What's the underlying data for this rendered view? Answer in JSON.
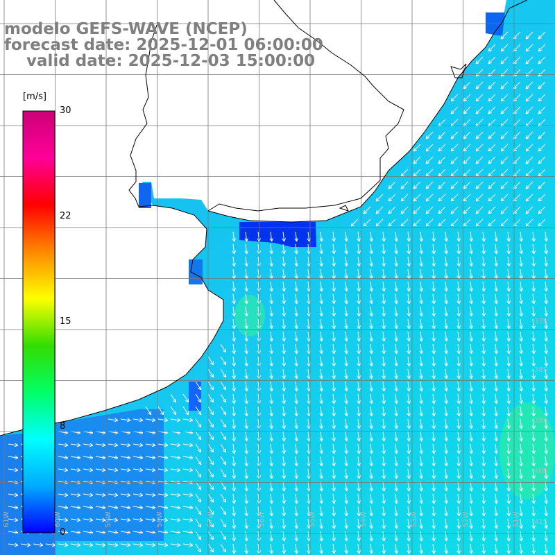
{
  "title": {
    "line1": "modelo GEFS-WAVE (NCEP)",
    "line2": "forecast date: 2025-12-01 06:00:00",
    "line3": "    valid date: 2025-12-03 15:00:00"
  },
  "colorbar": {
    "units": "[m/s]",
    "ticks": [
      "30",
      "22",
      "15",
      "8",
      "0"
    ],
    "values": [
      30,
      22,
      15,
      8,
      0
    ],
    "stops": [
      "#0000ff",
      "#00aaff",
      "#00ffff",
      "#00ff66",
      "#33dd00",
      "#ffff00",
      "#ff8800",
      "#ff0000",
      "#ff0099",
      "#cc0077"
    ]
  },
  "grid_labels": {
    "lat_right": [
      "37S",
      "38S",
      "39S",
      "40S",
      "41S"
    ],
    "lon_bottom": [
      "61W",
      "60W",
      "59W",
      "58W",
      "57W",
      "56W",
      "55W",
      "54W",
      "53W",
      "52W",
      "51W"
    ]
  },
  "colors": {
    "land": "#ffffff",
    "coast": "#000000",
    "grid": "#777777",
    "arrows": "#ffffff"
  }
}
